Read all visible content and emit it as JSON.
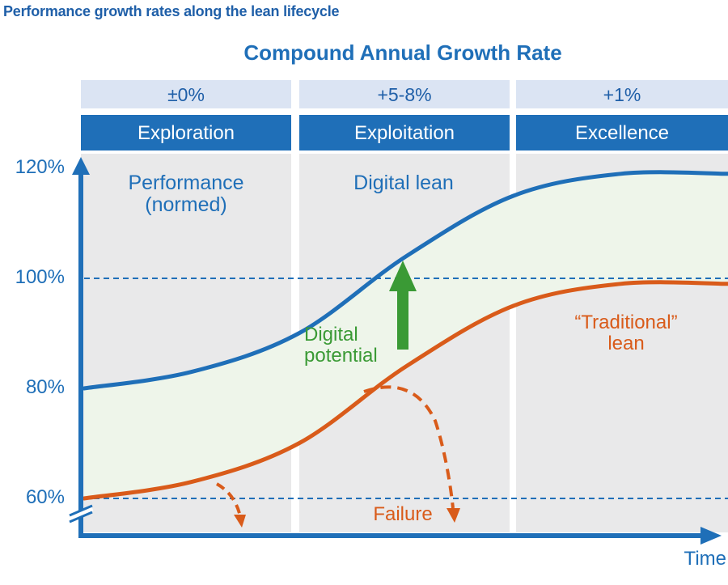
{
  "figure_title": "Performance growth rates along the lean lifecycle",
  "colors": {
    "blue": "#1f6fb8",
    "orange": "#d95b1a",
    "green": "#3a9a35",
    "header_fill": "#1f6fb8",
    "rate_fill": "#dbe4f3",
    "panel_fill": "#e9e9ea",
    "band_fill": "#eef5ea"
  },
  "chart_data": {
    "type": "line",
    "title": "Compound Annual Growth Rate",
    "xlabel": "Time",
    "ylabel": "",
    "ylim": [
      55,
      122
    ],
    "y_ticks": [
      "120%",
      "100%",
      "80%",
      "60%"
    ],
    "y_tick_values": [
      120,
      100,
      80,
      60
    ],
    "reference_lines": [
      100,
      60
    ],
    "phases": [
      {
        "name": "Exploration",
        "cagr": "±0%"
      },
      {
        "name": "Exploitation",
        "cagr": "+5-8%"
      },
      {
        "name": "Excellence",
        "cagr": "+1%"
      }
    ],
    "x": [
      0,
      0.5,
      1,
      1.5,
      2,
      2.5,
      3
    ],
    "series": [
      {
        "name": "Digital lean",
        "values": [
          80,
          83,
          90,
          104,
          115,
          119,
          119
        ]
      },
      {
        "name": "Traditional lean",
        "values": [
          60,
          63,
          70,
          84,
          95,
          99,
          99
        ]
      }
    ],
    "annotations": {
      "ylabel_line1": "Performance",
      "ylabel_line2": "(normed)",
      "digital_lean": "Digital lean",
      "traditional_line1": "“Traditional”",
      "traditional_line2": "lean",
      "potential_line1": "Digital",
      "potential_line2": "potential",
      "failure": "Failure"
    }
  }
}
